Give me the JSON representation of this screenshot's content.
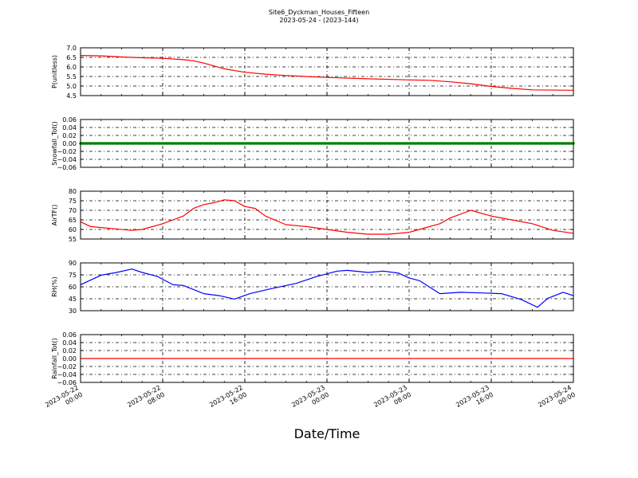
{
  "figure": {
    "title": "Site6_Dyckman_Houses_Fifteen",
    "subtitle": "2023-05-24 - (2023-144)",
    "xlabel": "Date/Time",
    "x_tick_labels": [
      [
        "2023-05-22",
        "00:00"
      ],
      [
        "2023-05-22",
        "08:00"
      ],
      [
        "2023-05-22",
        "16:00"
      ],
      [
        "2023-05-23",
        "00:00"
      ],
      [
        "2023-05-23",
        "08:00"
      ],
      [
        "2023-05-23",
        "16:00"
      ],
      [
        "2023-05-24",
        "00:00"
      ]
    ]
  },
  "chart_data": [
    {
      "type": "line",
      "ylabel": "P(unitless)",
      "xlim": [
        "2023-05-22 00:00",
        "2023-05-24 00:00"
      ],
      "ylim": [
        4.5,
        7.0
      ],
      "yticks": [
        "7.0",
        "6.5",
        "6.0",
        "5.5",
        "5.0",
        "4.5"
      ],
      "grid": true,
      "color": "#ff0000",
      "series": [
        {
          "x": [
            "2023-05-22 00:00",
            "2023-05-22 02:00",
            "2023-05-22 04:00",
            "2023-05-22 06:00",
            "2023-05-22 08:00",
            "2023-05-22 10:00",
            "2023-05-22 11:00",
            "2023-05-22 12:00",
            "2023-05-22 13:00",
            "2023-05-22 14:00",
            "2023-05-22 16:00",
            "2023-05-22 18:00",
            "2023-05-22 20:00",
            "2023-05-23 00:00",
            "2023-05-23 04:00",
            "2023-05-23 08:00",
            "2023-05-23 10:00",
            "2023-05-23 12:00",
            "2023-05-23 14:00",
            "2023-05-23 16:00",
            "2023-05-23 18:00",
            "2023-05-23 20:00",
            "2023-05-24 00:00"
          ],
          "values": [
            6.6,
            6.58,
            6.52,
            6.48,
            6.45,
            6.38,
            6.32,
            6.2,
            6.05,
            5.9,
            5.72,
            5.62,
            5.55,
            5.45,
            5.38,
            5.32,
            5.3,
            5.22,
            5.12,
            4.98,
            4.88,
            4.8,
            4.78
          ]
        }
      ]
    },
    {
      "type": "scatter",
      "ylabel": "Snowfall_Tot()",
      "xlim": [
        "2023-05-22 00:00",
        "2023-05-24 00:00"
      ],
      "ylim": [
        -0.06,
        0.06
      ],
      "yticks": [
        "0.06",
        "0.04",
        "0.02",
        "0.00",
        "−0.02",
        "−0.04",
        "−0.06"
      ],
      "grid": true,
      "color": "#008000",
      "series": [
        {
          "x_start": "2023-05-22 00:00",
          "x_end": "2023-05-24 00:00",
          "constant_value": 0.0
        }
      ]
    },
    {
      "type": "line",
      "ylabel": "AirTF()",
      "xlim": [
        "2023-05-22 00:00",
        "2023-05-24 00:00"
      ],
      "ylim": [
        55,
        80
      ],
      "yticks": [
        "80",
        "75",
        "70",
        "65",
        "60",
        "55"
      ],
      "grid": true,
      "color": "#ff0000",
      "series": [
        {
          "x": [
            "2023-05-22 00:00",
            "2023-05-22 01:00",
            "2023-05-22 03:00",
            "2023-05-22 05:00",
            "2023-05-22 06:00",
            "2023-05-22 08:00",
            "2023-05-22 09:00",
            "2023-05-22 10:00",
            "2023-05-22 11:00",
            "2023-05-22 12:00",
            "2023-05-22 13:00",
            "2023-05-22 14:00",
            "2023-05-22 15:00",
            "2023-05-22 16:00",
            "2023-05-22 17:00",
            "2023-05-22 18:00",
            "2023-05-22 20:00",
            "2023-05-22 22:00",
            "2023-05-23 00:00",
            "2023-05-23 02:00",
            "2023-05-23 04:00",
            "2023-05-23 06:00",
            "2023-05-23 08:00",
            "2023-05-23 09:00",
            "2023-05-23 11:00",
            "2023-05-23 12:00",
            "2023-05-23 14:00",
            "2023-05-23 16:00",
            "2023-05-23 17:00",
            "2023-05-23 18:00",
            "2023-05-23 20:00",
            "2023-05-23 22:00",
            "2023-05-24 00:00"
          ],
          "values": [
            64,
            61.5,
            60.5,
            59.5,
            60,
            63,
            65,
            67,
            71,
            73,
            74,
            75.5,
            75,
            72,
            71,
            67,
            62.5,
            61.5,
            60,
            58.5,
            57.5,
            57.5,
            58.5,
            60,
            63,
            66,
            70,
            67,
            66,
            65,
            63,
            59.5,
            58
          ]
        }
      ]
    },
    {
      "type": "line",
      "ylabel": "RH(%)",
      "xlim": [
        "2023-05-22 00:00",
        "2023-05-24 00:00"
      ],
      "ylim": [
        20,
        90
      ],
      "yticks": [
        "90",
        "75",
        "60",
        "45",
        "30"
      ],
      "grid": true,
      "color": "#0000ff",
      "series": [
        {
          "x": [
            "2023-05-22 00:00",
            "2023-05-22 02:00",
            "2023-05-22 03:30",
            "2023-05-22 05:00",
            "2023-05-22 06:00",
            "2023-05-22 07:30",
            "2023-05-22 09:00",
            "2023-05-22 10:00",
            "2023-05-22 12:00",
            "2023-05-22 13:30",
            "2023-05-22 15:00",
            "2023-05-22 16:30",
            "2023-05-22 18:30",
            "2023-05-22 21:00",
            "2023-05-22 23:00",
            "2023-05-23 01:00",
            "2023-05-23 02:00",
            "2023-05-23 04:00",
            "2023-05-23 05:30",
            "2023-05-23 07:00",
            "2023-05-23 08:00",
            "2023-05-23 09:00",
            "2023-05-23 11:00",
            "2023-05-23 13:00",
            "2023-05-23 15:00",
            "2023-05-23 17:00",
            "2023-05-23 19:00",
            "2023-05-23 20:30",
            "2023-05-23 21:30",
            "2023-05-23 23:00",
            "2023-05-24 00:00"
          ],
          "values": [
            58,
            72,
            76,
            81,
            76,
            70,
            58,
            57,
            45,
            42,
            37,
            45,
            52,
            60,
            70,
            78,
            79,
            76,
            78,
            75,
            68,
            64,
            45,
            47,
            46,
            45,
            36,
            25,
            38,
            47,
            42
          ]
        }
      ]
    },
    {
      "type": "line",
      "ylabel": "Rainfall_Tot()",
      "xlim": [
        "2023-05-22 00:00",
        "2023-05-24 00:00"
      ],
      "ylim": [
        -0.06,
        0.06
      ],
      "yticks": [
        "0.06",
        "0.04",
        "0.02",
        "0.00",
        "−0.02",
        "−0.04",
        "−0.06"
      ],
      "grid": true,
      "color": "#ff0000",
      "series": [
        {
          "x": [
            "2023-05-22 00:00",
            "2023-05-24 00:00"
          ],
          "values": [
            0.0,
            0.0
          ]
        }
      ]
    }
  ]
}
